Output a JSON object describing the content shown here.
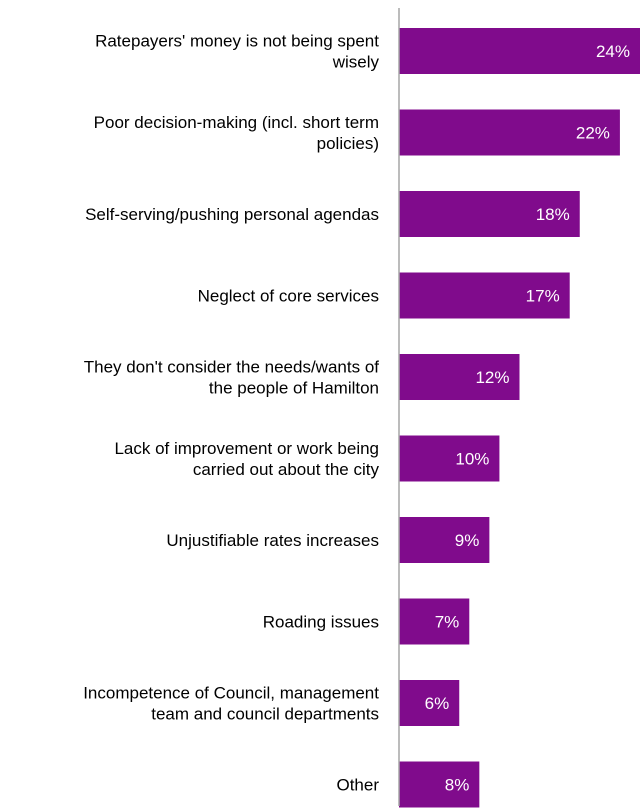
{
  "chart_data": {
    "type": "bar",
    "orientation": "horizontal",
    "categories": [
      [
        "Ratepayers' money is not being spent",
        "wisely"
      ],
      [
        "Poor decision-making (incl. short term",
        "policies)"
      ],
      [
        "Self-serving/pushing personal agendas"
      ],
      [
        "Neglect of core services"
      ],
      [
        "They don't consider the needs/wants of",
        "the people of Hamilton"
      ],
      [
        "Lack of improvement or work being",
        "carried out about the city"
      ],
      [
        "Unjustifiable rates increases"
      ],
      [
        "Roading issues"
      ],
      [
        "Incompetence of Council, management",
        "team and council departments"
      ],
      [
        "Other"
      ]
    ],
    "values": [
      24,
      22,
      18,
      17,
      12,
      10,
      9,
      7,
      6,
      8
    ],
    "value_labels": [
      "24%",
      "22%",
      "18%",
      "17%",
      "12%",
      "10%",
      "9%",
      "7%",
      "6%",
      "8%"
    ],
    "xlim": [
      0,
      24
    ],
    "bar_color": "#800b8c",
    "axis_color": "#a6a6a6",
    "grid": false,
    "legend": "none"
  }
}
